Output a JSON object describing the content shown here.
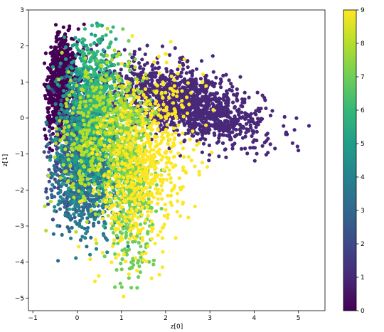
{
  "chart_data": {
    "type": "scatter",
    "title": "",
    "xlabel": "z[0]",
    "ylabel": "z[1]",
    "xlim": [
      -1.1,
      5.6
    ],
    "ylim": [
      -5.35,
      3.0
    ],
    "x_ticks": [
      -1,
      0,
      1,
      2,
      3,
      4,
      5
    ],
    "y_ticks": [
      -5,
      -4,
      -3,
      -2,
      -1,
      0,
      1,
      2,
      3
    ],
    "grid": false,
    "colorbar": {
      "colormap": "viridis",
      "min": 0,
      "max": 9,
      "ticks": [
        0,
        1,
        2,
        3,
        4,
        5,
        6,
        7,
        8,
        9
      ],
      "colors": [
        "#440154",
        "#482878",
        "#3e4989",
        "#31688e",
        "#26828e",
        "#1f9e89",
        "#35b779",
        "#6ece58",
        "#b5de2b",
        "#fde725"
      ]
    },
    "clusters": [
      {
        "label": 1,
        "color": "#482878",
        "cx": 2.5,
        "cy": 0.4,
        "sx": 0.85,
        "sy": 0.55,
        "rho": -0.55,
        "n": 1400
      },
      {
        "label": 0,
        "color": "#440154",
        "cx": -0.38,
        "cy": 1.0,
        "sx": 0.17,
        "sy": 0.7,
        "rho": 0.3,
        "n": 700
      },
      {
        "label": 2,
        "color": "#3e4989",
        "cx": 0.0,
        "cy": -0.6,
        "sx": 0.3,
        "sy": 0.9,
        "rho": 0.2,
        "n": 500
      },
      {
        "label": 3,
        "color": "#31688e",
        "cx": 0.15,
        "cy": -1.8,
        "sx": 0.35,
        "sy": 0.7,
        "rho": 0.1,
        "n": 350
      },
      {
        "label": 4,
        "color": "#26828e",
        "cx": 0.3,
        "cy": -1.2,
        "sx": 0.4,
        "sy": 1.0,
        "rho": -0.1,
        "n": 450
      },
      {
        "label": 5,
        "color": "#1f9e89",
        "cx": 0.2,
        "cy": 0.3,
        "sx": 0.3,
        "sy": 1.0,
        "rho": 0.1,
        "n": 450
      },
      {
        "label": 6,
        "color": "#35b779",
        "cx": 0.5,
        "cy": 0.4,
        "sx": 0.25,
        "sy": 1.0,
        "rho": 0.0,
        "n": 400
      },
      {
        "label": 7,
        "color": "#6ece58",
        "cx": 1.2,
        "cy": -1.6,
        "sx": 0.25,
        "sy": 1.3,
        "rho": 0.0,
        "n": 550
      },
      {
        "label": 8,
        "color": "#b5de2b",
        "cx": 0.6,
        "cy": -0.5,
        "sx": 0.5,
        "sy": 1.0,
        "rho": 0.1,
        "n": 450
      },
      {
        "label": 9,
        "color": "#fde725",
        "cx": 1.5,
        "cy": -1.4,
        "sx": 0.55,
        "sy": 1.3,
        "rho": 0.35,
        "n": 650
      }
    ],
    "bounds": {
      "xmin": -0.75,
      "xmax": 5.25,
      "ymin": -5.0,
      "ymax": 2.65
    }
  }
}
